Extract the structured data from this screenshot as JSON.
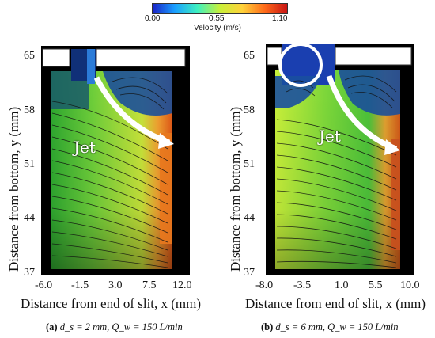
{
  "colorbar": {
    "ticks": [
      "0.00",
      "0.55",
      "1.10"
    ],
    "label": "Velocity (m/s)",
    "colors": [
      "#1a23c8",
      "#1aa0ff",
      "#3ef0c0",
      "#c8f03a",
      "#ffd23a",
      "#ff6b1a",
      "#c81414"
    ]
  },
  "panels": [
    {
      "id": "a",
      "ylabel": "Distance from bottom, y (mm)",
      "xlabel": "Distance from end of slit, x (mm)",
      "yticks": [
        "65",
        "58",
        "51",
        "44",
        "37"
      ],
      "xticks": [
        "-6.0",
        "-1.5",
        "3.0",
        "7.5",
        "12.0"
      ],
      "annotation": "Jet",
      "caption": {
        "letter": "(a)",
        "text": "d_s = 2 mm,  Q_w = 150 L/min"
      }
    },
    {
      "id": "b",
      "ylabel": "Distance from bottom, y (mm)",
      "xlabel": "Distance from end of slit, x (mm)",
      "yticks": [
        "65",
        "58",
        "51",
        "44",
        "37"
      ],
      "xticks": [
        "-8.0",
        "-3.5",
        "1.0",
        "5.5",
        "10.0"
      ],
      "annotation": "Jet",
      "caption": {
        "letter": "(b)",
        "text": "d_s = 6 mm,  Q_w = 150 L/min"
      }
    }
  ]
}
